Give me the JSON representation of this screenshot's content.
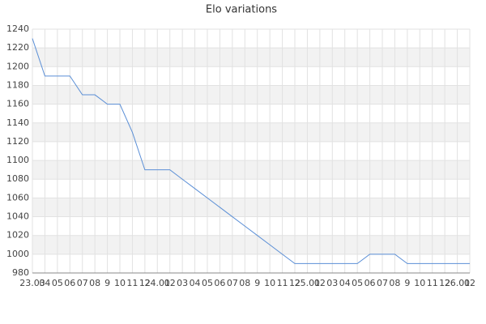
{
  "chart_data": {
    "type": "line",
    "title": "Elo variations",
    "categories": [
      "23.03",
      "04",
      "05",
      "06",
      "07",
      "08",
      "9",
      "10",
      "11",
      "12",
      "24.01",
      "02",
      "03",
      "04",
      "05",
      "06",
      "07",
      "08",
      "9",
      "10",
      "11",
      "12",
      "25.01",
      "02",
      "03",
      "04",
      "05",
      "06",
      "07",
      "08",
      "9",
      "10",
      "11",
      "12",
      "26.01",
      "02"
    ],
    "values": [
      1230,
      1190,
      1190,
      1190,
      1170,
      1170,
      1160,
      1160,
      1130,
      1090,
      1090,
      1090,
      1080,
      1070,
      1060,
      1050,
      1040,
      1030,
      1020,
      1010,
      1000,
      990,
      990,
      990,
      990,
      990,
      990,
      1000,
      1000,
      1000,
      990,
      990,
      990,
      990,
      990,
      990
    ],
    "color": "#5b8fd6",
    "ylim": [
      980,
      1240
    ],
    "yticks": [
      980,
      1000,
      1020,
      1040,
      1060,
      1080,
      1100,
      1120,
      1140,
      1160,
      1180,
      1200,
      1220,
      1240
    ],
    "grid": true
  }
}
